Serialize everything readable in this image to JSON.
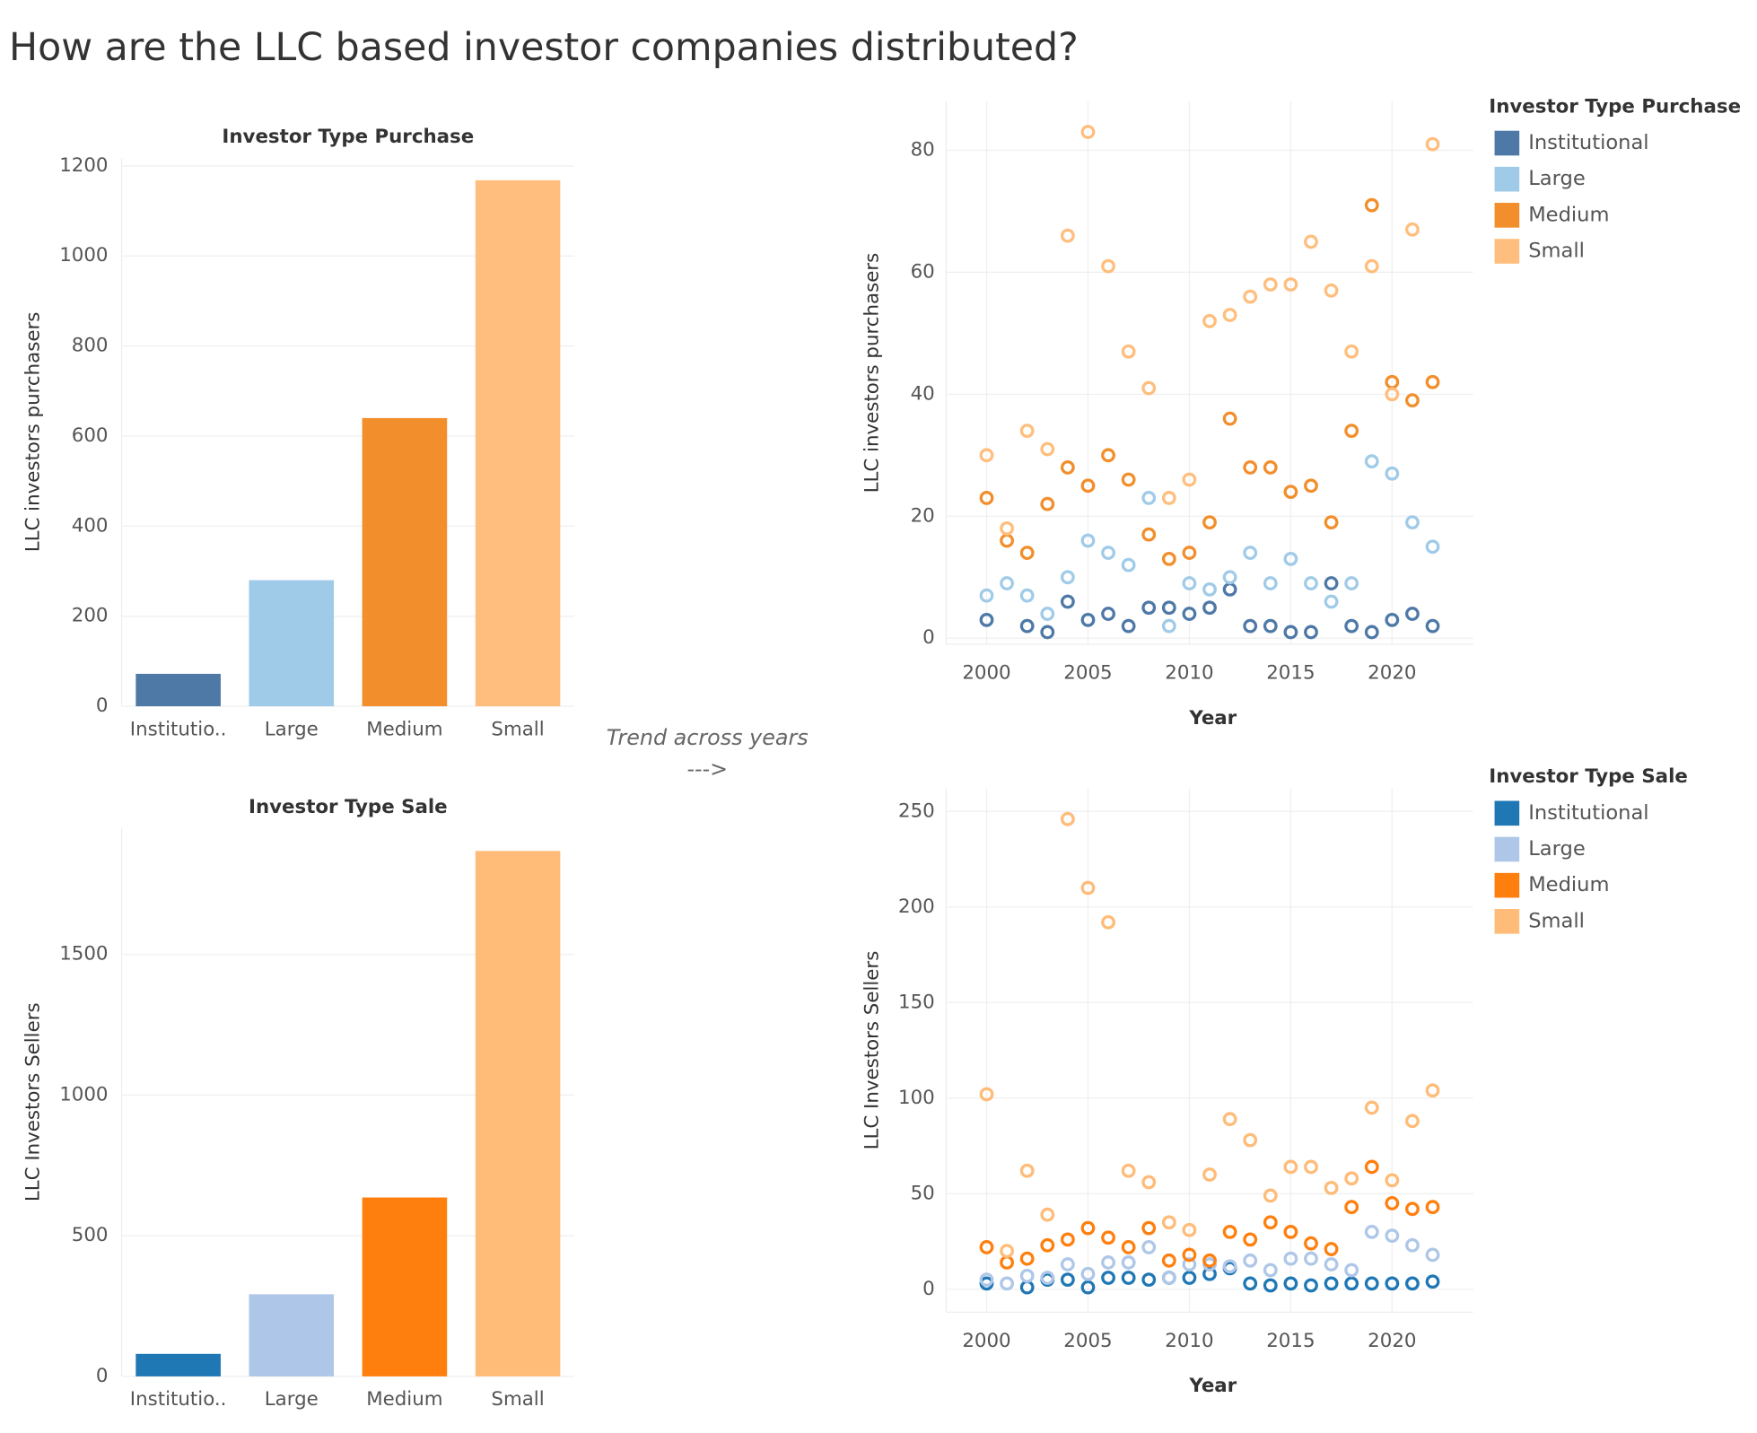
{
  "title": "How are the LLC based investor companies distributed?",
  "annotation": "Trend across years",
  "arrow": "--->",
  "chart_data": [
    {
      "type": "bar",
      "title": "Investor Type Purchase",
      "y_label": "LLC investors purchasers",
      "categories": [
        "Institutio..",
        "Large",
        "Medium",
        "Small"
      ],
      "values": [
        72,
        280,
        640,
        1168
      ],
      "colors": [
        "#4e79a7",
        "#a0cbe8",
        "#f28e2b",
        "#ffbe7d"
      ],
      "ylim": [
        0,
        1218
      ],
      "yticks": [
        0,
        200,
        400,
        600,
        800,
        1000,
        1200
      ],
      "grid": true
    },
    {
      "type": "scatter",
      "y_label": "LLC investors purchasers",
      "x_label": "Year",
      "legend_title": "Investor Type Purchase",
      "legend": "right",
      "x": [
        2000,
        2001,
        2002,
        2003,
        2004,
        2005,
        2006,
        2007,
        2008,
        2009,
        2010,
        2011,
        2012,
        2013,
        2014,
        2015,
        2016,
        2017,
        2018,
        2019,
        2020,
        2021,
        2022
      ],
      "series": [
        {
          "name": "Institutional",
          "color": "#4e79a7",
          "values": [
            3,
            null,
            2,
            1,
            6,
            3,
            4,
            2,
            5,
            5,
            4,
            5,
            8,
            2,
            2,
            1,
            1,
            9,
            2,
            1,
            3,
            4,
            2
          ]
        },
        {
          "name": "Large",
          "color": "#a0cbe8",
          "values": [
            7,
            9,
            7,
            4,
            10,
            16,
            14,
            12,
            23,
            2,
            9,
            8,
            10,
            14,
            9,
            13,
            9,
            6,
            9,
            29,
            27,
            19,
            15
          ]
        },
        {
          "name": "Medium",
          "color": "#f28e2b",
          "values": [
            23,
            16,
            14,
            22,
            28,
            25,
            30,
            26,
            17,
            13,
            14,
            19,
            36,
            28,
            28,
            24,
            25,
            19,
            34,
            71,
            42,
            39,
            42
          ]
        },
        {
          "name": "Small",
          "color": "#ffbe7d",
          "values": [
            30,
            18,
            34,
            31,
            66,
            83,
            61,
            47,
            41,
            23,
            26,
            52,
            53,
            56,
            58,
            58,
            65,
            57,
            47,
            61,
            40,
            67,
            81
          ]
        }
      ],
      "xlim": [
        1998,
        2024
      ],
      "xticks": [
        2000,
        2005,
        2010,
        2015,
        2020
      ],
      "ylim": [
        -1,
        88
      ],
      "yticks": [
        0,
        20,
        40,
        60,
        80
      ],
      "grid": true
    },
    {
      "type": "bar",
      "title": "Investor Type Sale",
      "y_label": "LLC Investors Sellers",
      "categories": [
        "Institutio..",
        "Large",
        "Medium",
        "Small"
      ],
      "values": [
        80,
        292,
        636,
        1868
      ],
      "colors": [
        "#1f77b4",
        "#aec7e8",
        "#ff7f0e",
        "#ffbb78"
      ],
      "ylim": [
        0,
        1950
      ],
      "yticks": [
        0,
        500,
        1000,
        1500
      ],
      "grid": true
    },
    {
      "type": "scatter",
      "y_label": "LLC Investors Sellers",
      "x_label": "Year",
      "legend_title": "Investor Type Sale",
      "legend": "right",
      "x": [
        2000,
        2001,
        2002,
        2003,
        2004,
        2005,
        2006,
        2007,
        2008,
        2009,
        2010,
        2011,
        2012,
        2013,
        2014,
        2015,
        2016,
        2017,
        2018,
        2019,
        2020,
        2021,
        2022
      ],
      "series": [
        {
          "name": "Institutional",
          "color": "#1f77b4",
          "values": [
            3,
            null,
            1,
            5,
            5,
            1,
            6,
            6,
            5,
            6,
            6,
            8,
            11,
            3,
            2,
            3,
            2,
            3,
            3,
            3,
            3,
            3,
            4
          ]
        },
        {
          "name": "Large",
          "color": "#aec7e8",
          "values": [
            5,
            3,
            7,
            6,
            13,
            8,
            14,
            14,
            22,
            6,
            13,
            13,
            12,
            15,
            10,
            16,
            16,
            13,
            10,
            30,
            28,
            23,
            18
          ]
        },
        {
          "name": "Medium",
          "color": "#ff7f0e",
          "values": [
            22,
            14,
            16,
            23,
            26,
            32,
            27,
            22,
            32,
            15,
            18,
            15,
            30,
            26,
            35,
            30,
            24,
            21,
            43,
            64,
            45,
            42,
            43
          ]
        },
        {
          "name": "Small",
          "color": "#ffbb78",
          "values": [
            102,
            20,
            62,
            39,
            246,
            210,
            192,
            62,
            56,
            35,
            31,
            60,
            89,
            78,
            49,
            64,
            64,
            53,
            58,
            95,
            57,
            88,
            104
          ]
        }
      ],
      "xlim": [
        1998,
        2024
      ],
      "xticks": [
        2000,
        2005,
        2010,
        2015,
        2020
      ],
      "ylim": [
        -12,
        262
      ],
      "yticks": [
        0,
        50,
        100,
        150,
        200,
        250
      ],
      "grid": true
    }
  ]
}
